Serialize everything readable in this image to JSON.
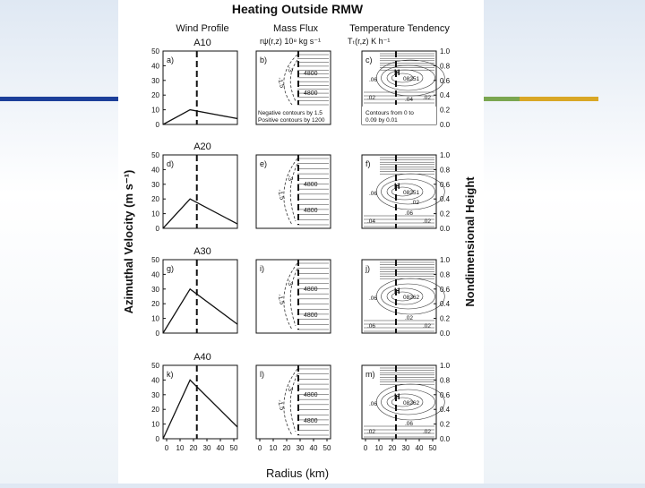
{
  "figure": {
    "title": "Heating Outside RMW",
    "column_headers": {
      "wind": "Wind Profile",
      "mass": "Mass Flux",
      "temp": "Temperature Tendency"
    },
    "mass_flux_units": "rψ(r,z)  10⁸ kg s⁻¹",
    "temp_units": "Tₜ(r,z)          K h⁻¹",
    "left_axis_label": "Azimuthal Velocity (m s⁻¹)",
    "right_axis_label": "Nondimensional Height",
    "x_axis_label": "Radius (km)",
    "mass_note": [
      "Negative contours by 1.5",
      "Positive contours by 1200"
    ],
    "temp_note": [
      "Contours from 0 to",
      "0.09 by 0.01"
    ],
    "rows": [
      {
        "name": "A10",
        "panels": [
          "a)",
          "b)",
          "c)"
        ],
        "mass_labels": [
          "-1.5",
          "-3",
          "4800",
          "4800"
        ],
        "temp_labels": [
          "08251",
          ".06",
          ".04",
          ".02",
          ".02"
        ]
      },
      {
        "name": "A20",
        "panels": [
          "d)",
          "e)",
          "f)"
        ],
        "mass_labels": [
          "-1.5",
          "-3",
          "4800",
          "4800"
        ],
        "temp_labels": [
          "08251",
          ".06",
          ".06",
          ".04",
          ".02",
          ".02"
        ]
      },
      {
        "name": "A30",
        "panels": [
          "g)",
          "i)",
          "j)"
        ],
        "mass_labels": [
          "-1.5",
          "-3",
          "4800",
          "4800"
        ],
        "temp_labels": [
          "08262",
          ".06",
          ".02",
          ".06",
          ".02"
        ]
      },
      {
        "name": "A40",
        "panels": [
          "k)",
          "l)",
          "m)"
        ],
        "mass_labels": [
          "-1.5",
          "-3",
          "4800",
          "4800"
        ],
        "temp_labels": [
          "08262",
          ".06",
          ".06",
          ".02",
          ".02"
        ]
      }
    ],
    "x_ticks": [
      "0",
      "10",
      "20",
      "30",
      "40",
      "50"
    ],
    "y_ticks_left": [
      "0",
      "10",
      "20",
      "30",
      "40",
      "50"
    ],
    "y_ticks_right": [
      "0.0",
      "0.2",
      "0.4",
      "0.6",
      "0.8",
      "1.0"
    ]
  },
  "chart_data": {
    "type": "line",
    "title": "Heating Outside RMW",
    "xlabel": "Radius (km)",
    "ylabel": "Azimuthal Velocity (m s⁻¹)",
    "xlim": [
      0,
      55
    ],
    "ylim": [
      0,
      50
    ],
    "rmw_heating_radius_km": 25,
    "series": [
      {
        "name": "A10",
        "x": [
          0,
          20,
          55
        ],
        "y": [
          0,
          10,
          4
        ]
      },
      {
        "name": "A20",
        "x": [
          0,
          20,
          55
        ],
        "y": [
          0,
          20,
          3
        ]
      },
      {
        "name": "A30",
        "x": [
          0,
          20,
          55
        ],
        "y": [
          0,
          30,
          6
        ]
      },
      {
        "name": "A40",
        "x": [
          0,
          20,
          55
        ],
        "y": [
          0,
          40,
          8
        ]
      }
    ]
  },
  "colors": {
    "blue": "#1c3f9a",
    "green": "#7aa650",
    "gold": "#d9a726"
  }
}
